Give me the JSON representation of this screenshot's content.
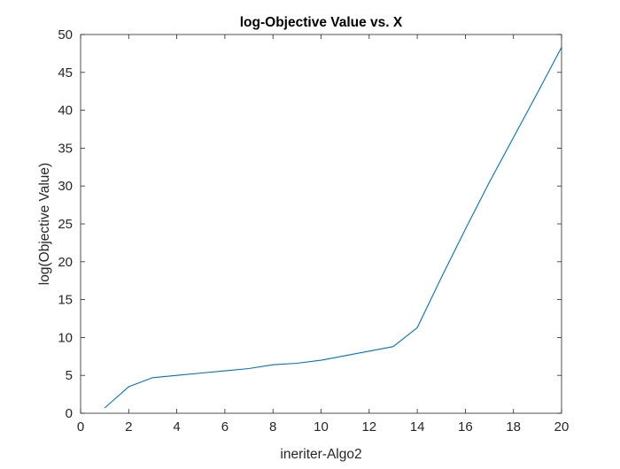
{
  "chart_data": {
    "type": "line",
    "title": "log-Objective Value vs. X",
    "xlabel": "ineriter-Algo2",
    "ylabel": "log(Objective Value)",
    "xlim": [
      0,
      20
    ],
    "ylim": [
      0,
      50
    ],
    "xticks": [
      0,
      2,
      4,
      6,
      8,
      10,
      12,
      14,
      16,
      18,
      20
    ],
    "yticks": [
      0,
      5,
      10,
      15,
      20,
      25,
      30,
      35,
      40,
      45,
      50
    ],
    "grid": false,
    "series": [
      {
        "color": "#0072BD",
        "x": [
          1,
          2,
          3,
          4,
          5,
          6,
          7,
          8,
          9,
          10,
          11,
          12,
          13,
          14,
          15,
          16,
          17,
          18,
          19,
          20
        ],
        "y": [
          0.7,
          3.5,
          4.7,
          5.0,
          5.3,
          5.6,
          5.9,
          6.4,
          6.6,
          7.0,
          7.6,
          8.2,
          8.8,
          11.3,
          17.9,
          24.3,
          30.5,
          36.4,
          42.3,
          48.3
        ]
      }
    ]
  }
}
